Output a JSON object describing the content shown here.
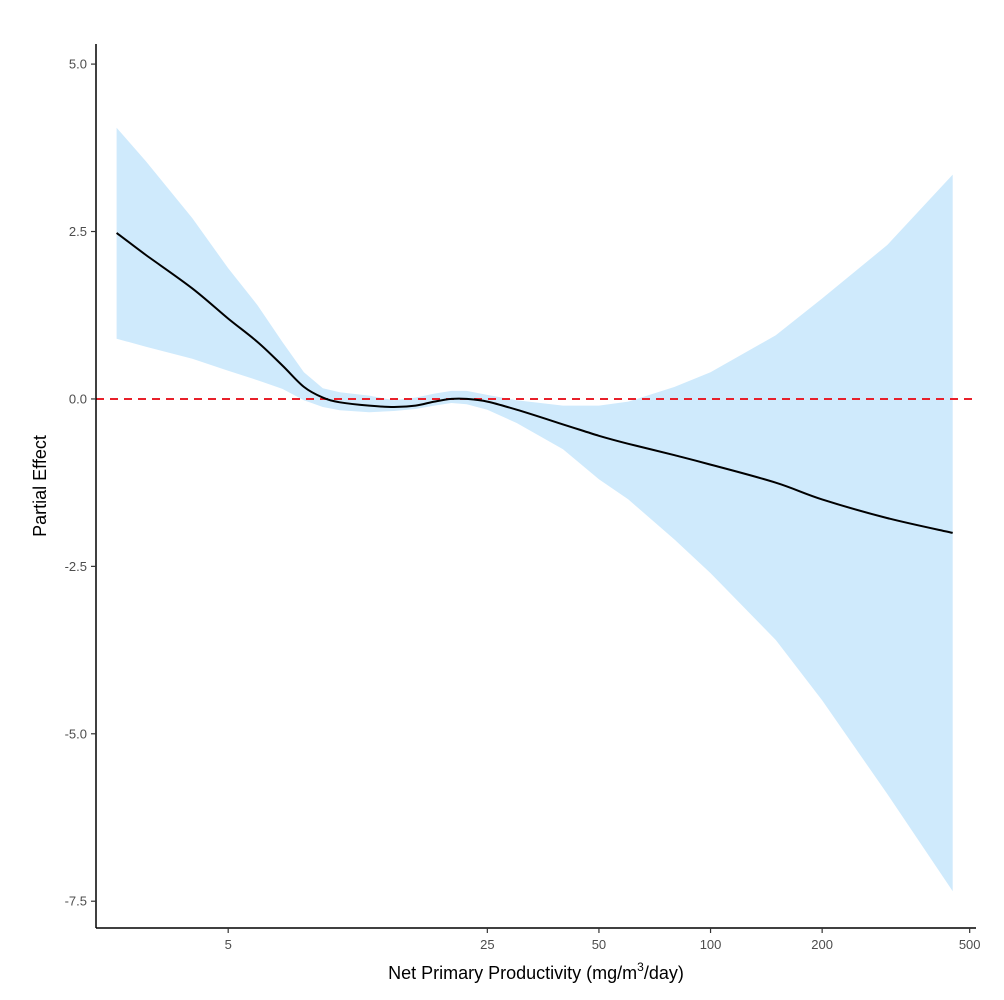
{
  "chart_data": {
    "type": "line",
    "xlabel_main": "Net Primary Productivity (mg/m",
    "xlabel_sup": "3",
    "xlabel_end": "/day)",
    "ylabel": "Partial Effect",
    "x_scale": "log",
    "xlim": [
      2.2,
      520
    ],
    "ylim": [
      -7.9,
      5.3
    ],
    "x_ticks": [
      5,
      25,
      50,
      100,
      200,
      500
    ],
    "x_tick_labels": [
      "5",
      "25",
      "50",
      "100",
      "200",
      "500"
    ],
    "y_ticks": [
      5,
      2.5,
      0,
      -2.5,
      -5,
      -7.5
    ],
    "y_tick_labels": [
      "5.0",
      "2.5",
      "0.0",
      "-2.5",
      "-5.0",
      "-7.5"
    ],
    "reference_line": {
      "y": 0,
      "color": "#e8202a",
      "style": "dashed"
    },
    "ribbon_color": "#cfeafc",
    "line_color": "#000000",
    "grid": false,
    "legend": "none",
    "series": [
      {
        "x": [
          2.5,
          3,
          4,
          5,
          6,
          7,
          8,
          9,
          10,
          12,
          14,
          16,
          18,
          20,
          22,
          25,
          30,
          40,
          50,
          60,
          80,
          100,
          150,
          200,
          300,
          450
        ],
        "y": [
          2.48,
          2.15,
          1.65,
          1.2,
          0.85,
          0.5,
          0.18,
          0.02,
          -0.05,
          -0.1,
          -0.12,
          -0.1,
          -0.04,
          0.0,
          0.0,
          -0.04,
          -0.16,
          -0.38,
          -0.55,
          -0.67,
          -0.84,
          -0.98,
          -1.25,
          -1.5,
          -1.78,
          -2.0
        ],
        "lower": [
          0.9,
          0.78,
          0.6,
          0.42,
          0.28,
          0.15,
          -0.02,
          -0.12,
          -0.17,
          -0.2,
          -0.18,
          -0.15,
          -0.1,
          -0.06,
          -0.08,
          -0.16,
          -0.36,
          -0.75,
          -1.2,
          -1.5,
          -2.1,
          -2.6,
          -3.6,
          -4.5,
          -5.9,
          -7.35
        ],
        "upper": [
          4.05,
          3.55,
          2.7,
          1.95,
          1.4,
          0.85,
          0.4,
          0.16,
          0.1,
          0.05,
          -0.02,
          0.02,
          0.08,
          0.12,
          0.12,
          0.06,
          -0.02,
          -0.1,
          -0.1,
          -0.04,
          0.18,
          0.4,
          0.95,
          1.5,
          2.3,
          3.35
        ]
      }
    ]
  }
}
